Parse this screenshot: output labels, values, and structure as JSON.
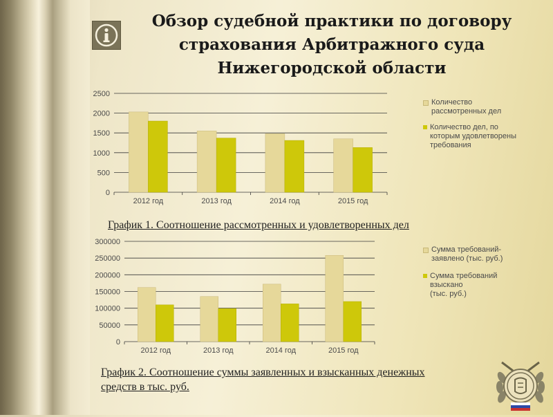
{
  "title": "Обзор судебной практики по договору страхования Арбитражного суда Нижегородской области",
  "icons": {
    "info": "info-icon",
    "emblem": "court-emblem-icon"
  },
  "colors": {
    "series1": "#e6d89a",
    "series2": "#cec80a",
    "grid": "#3a3a3a",
    "text": "#4a4a4a"
  },
  "chart_data": [
    {
      "type": "bar",
      "categories": [
        "2012 год",
        "2013 год",
        "2014 год",
        "2015 год"
      ],
      "series": [
        {
          "name": "Количество\nрассмотренных дел",
          "values": [
            2030,
            1550,
            1480,
            1350
          ]
        },
        {
          "name": "Количество дел, по\nкоторым удовлетворены\nтребования",
          "values": [
            1800,
            1370,
            1310,
            1130
          ]
        }
      ],
      "ylim": [
        0,
        2500
      ],
      "yticks": [
        0,
        500,
        1000,
        1500,
        2000,
        2500
      ],
      "grid": true,
      "legend": "right",
      "caption": "График 1. Соотношение рассмотренных и удовлетворенных дел"
    },
    {
      "type": "bar",
      "categories": [
        "2012 год",
        "2013 год",
        "2014 год",
        "2015 год"
      ],
      "series": [
        {
          "name": "Сумма требований-\nзаявлено (тыс. руб.)",
          "values": [
            162000,
            135000,
            172000,
            258000
          ]
        },
        {
          "name": "Сумма требований\nвзыскано\n(тыс.  руб.)",
          "values": [
            110000,
            99000,
            113000,
            120000
          ]
        }
      ],
      "ylim": [
        0,
        300000
      ],
      "yticks": [
        0,
        50000,
        100000,
        150000,
        200000,
        250000,
        300000
      ],
      "grid": true,
      "legend": "right",
      "caption": "График 2. Соотношение суммы заявленных и взысканных денежных средств в тыс. руб."
    }
  ]
}
